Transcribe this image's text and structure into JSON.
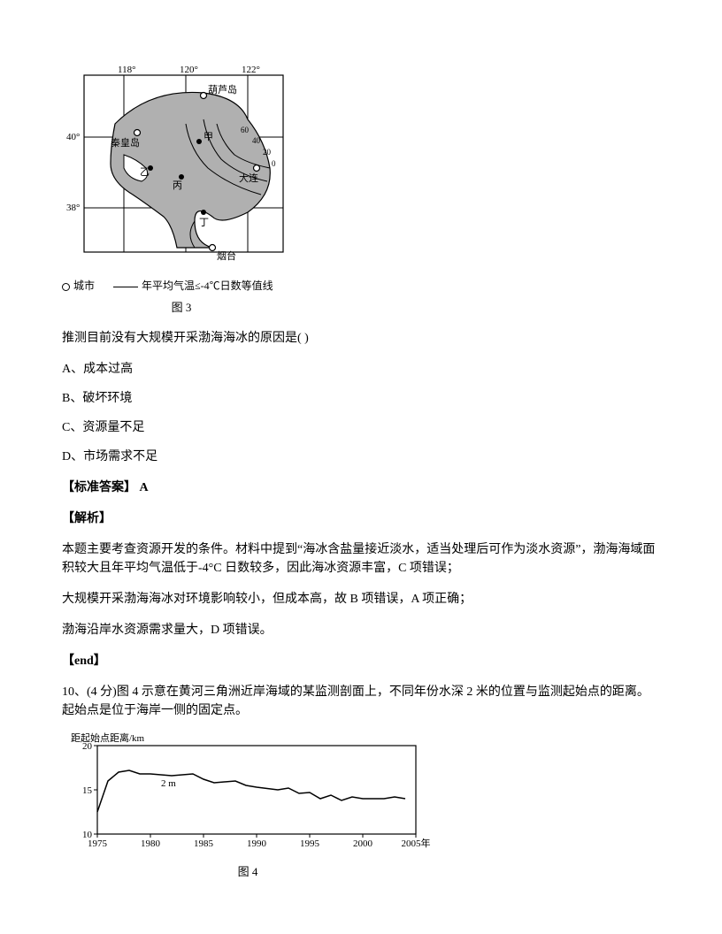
{
  "map_figure": {
    "cities": [
      "葫芦岛",
      "秦皇岛",
      "大连",
      "烟台"
    ],
    "points": [
      "甲",
      "乙",
      "丙",
      "丁"
    ],
    "lon_ticks": [
      "118°",
      "120°",
      "122°"
    ],
    "lat_ticks": [
      "40°",
      "38°"
    ],
    "contours": [
      "0",
      "20",
      "40",
      "60"
    ],
    "legend_city": "城市",
    "legend_line": "年平均气温≤-4℃日数等值线",
    "caption": "图 3",
    "colors": {
      "sea": "#b0b0b0",
      "land": "#ffffff",
      "stroke": "#000000"
    }
  },
  "question": {
    "stem": "推测目前没有大规模开采渤海海冰的原因是( )",
    "options": {
      "A": "A、成本过高",
      "B": "B、破坏环境",
      "C": "C、资源量不足",
      "D": "D、市场需求不足"
    }
  },
  "answer_label": "【标准答案】 A",
  "analysis_label": "【解析】",
  "analysis_p1": "本题主要考查资源开发的条件。材料中提到“海冰含盐量接近淡水，适当处理后可作为淡水资源”，渤海海域面积较大且年平均气温低于-4°C 日数较多，因此海冰资源丰富，C 项错误；",
  "analysis_p2": "大规模开采渤海海冰对环境影响较小，但成本高，故 B 项错误，A 项正确；",
  "analysis_p3": "渤海沿岸水资源需求量大，D 项错误。",
  "end_label": "【end】",
  "q10": {
    "text": "10、(4 分)图 4 示意在黄河三角洲近岸海域的某监测剖面上，不同年份水深 2 米的位置与监测起始点的距离。起始点是位于海岸一侧的固定点。"
  },
  "chart": {
    "type": "line",
    "y_label": "距起始点距离/km",
    "y_ticks": [
      10,
      15,
      20
    ],
    "ylim": [
      10,
      20
    ],
    "x_ticks": [
      1975,
      1980,
      1985,
      1990,
      1995,
      2000,
      2005
    ],
    "x_suffix": "年",
    "xlim": [
      1975,
      2005
    ],
    "series_label": "2 m",
    "data": [
      [
        1975,
        12.5
      ],
      [
        1976,
        16.0
      ],
      [
        1977,
        17.0
      ],
      [
        1978,
        17.2
      ],
      [
        1979,
        16.8
      ],
      [
        1980,
        16.8
      ],
      [
        1982,
        16.6
      ],
      [
        1984,
        16.8
      ],
      [
        1985,
        16.2
      ],
      [
        1986,
        15.8
      ],
      [
        1988,
        16.0
      ],
      [
        1989,
        15.5
      ],
      [
        1990,
        15.3
      ],
      [
        1992,
        15.0
      ],
      [
        1993,
        15.2
      ],
      [
        1994,
        14.6
      ],
      [
        1995,
        14.7
      ],
      [
        1996,
        14.0
      ],
      [
        1997,
        14.4
      ],
      [
        1998,
        13.8
      ],
      [
        1999,
        14.2
      ],
      [
        2000,
        14.0
      ],
      [
        2002,
        14.0
      ],
      [
        2003,
        14.2
      ],
      [
        2004,
        14.0
      ]
    ],
    "line_color": "#000000",
    "line_width": 1.5,
    "background": "#ffffff",
    "caption": "图 4"
  }
}
